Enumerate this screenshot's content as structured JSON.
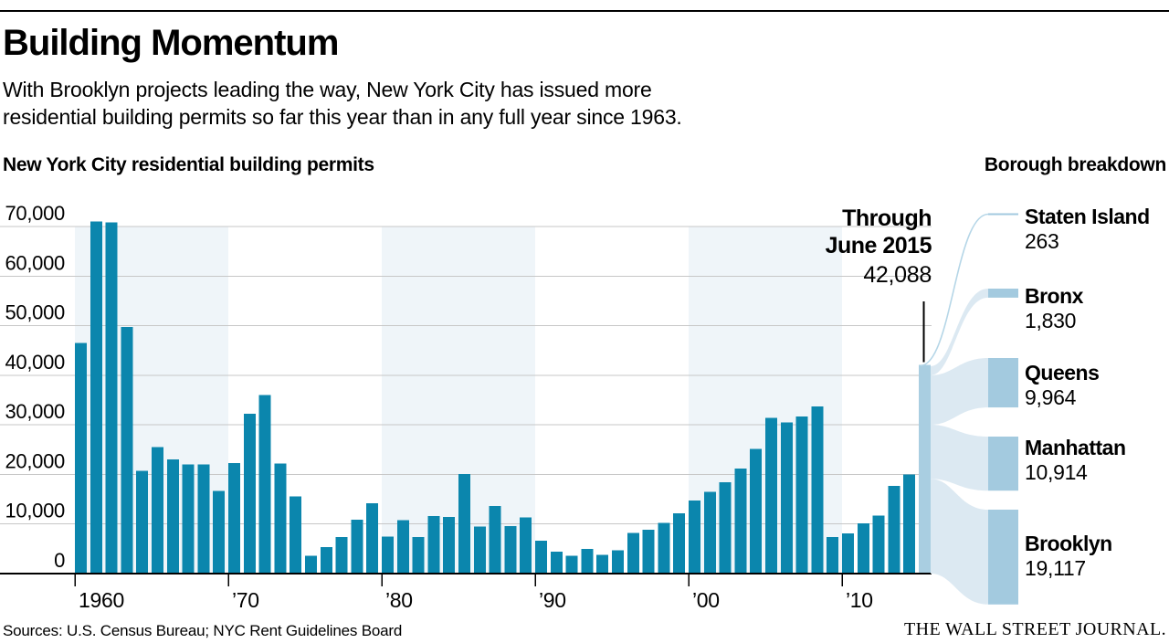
{
  "header": {
    "title": "Building Momentum",
    "subtitle_line1": "With Brooklyn projects leading the way, New York City has issued more",
    "subtitle_line2": "residential building permits so far this year than in any full year since 1963.",
    "chart_title": "New York City residential building permits",
    "breakdown_title": "Borough breakdown"
  },
  "annotation": {
    "line1": "Through",
    "line2": "June 2015",
    "value": "42,088"
  },
  "footer": {
    "sources": "Sources: U.S. Census Bureau; NYC Rent Guidelines Board",
    "brand": "THE WALL STREET JOURNAL."
  },
  "colors": {
    "bar": "#0b86ad",
    "highlight_bar": "#a9cee1",
    "node": "#a3cadf",
    "flow": "#dce9f2",
    "flow_line": "#b5d6e7",
    "band": "#eff5f9",
    "gridline": "#c7c7c7",
    "axis": "#000000",
    "text": "#000000"
  },
  "chart_data": {
    "type": "bar",
    "title": "New York City residential building permits",
    "xlabel": "",
    "ylabel": "",
    "ylim": [
      0,
      70000
    ],
    "grid": true,
    "x_start_year": 1960,
    "values": [
      46500,
      71000,
      70800,
      49700,
      20700,
      25500,
      23000,
      22000,
      22000,
      16700,
      22300,
      32200,
      36000,
      22200,
      15600,
      3600,
      5300,
      7400,
      10900,
      14200,
      7500,
      10800,
      7400,
      11600,
      11400,
      20100,
      9500,
      13600,
      9600,
      11300,
      6600,
      4400,
      3600,
      5000,
      3800,
      4700,
      8200,
      8800,
      10200,
      12200,
      14700,
      16500,
      18400,
      21200,
      25100,
      31400,
      30500,
      31700,
      33700,
      7400,
      8100,
      10100,
      11700,
      17700,
      20000
    ],
    "highlight": {
      "year": 2015,
      "value": 42088,
      "label": "Through June 2015",
      "value_label": "42,088"
    },
    "y_ticks": [
      0,
      10000,
      20000,
      30000,
      40000,
      50000,
      60000,
      70000
    ],
    "y_tick_labels": [
      "0",
      "10,000",
      "20,000",
      "30,000",
      "40,000",
      "50,000",
      "60,000",
      "70,000"
    ],
    "x_tick_years": [
      1960,
      1970,
      1980,
      1990,
      2000,
      2010
    ],
    "x_tick_labels": [
      "1960",
      "’70",
      "’80",
      "’90",
      "’00",
      "’10"
    ],
    "shaded_decades": [
      1960,
      1980,
      2000
    ],
    "boroughs": [
      {
        "name": "Staten Island",
        "value": 263,
        "value_label": "263"
      },
      {
        "name": "Bronx",
        "value": 1830,
        "value_label": "1,830"
      },
      {
        "name": "Queens",
        "value": 9964,
        "value_label": "9,964"
      },
      {
        "name": "Manhattan",
        "value": 10914,
        "value_label": "10,914"
      },
      {
        "name": "Brooklyn",
        "value": 19117,
        "value_label": "19,117"
      }
    ],
    "legend_position": "none"
  }
}
